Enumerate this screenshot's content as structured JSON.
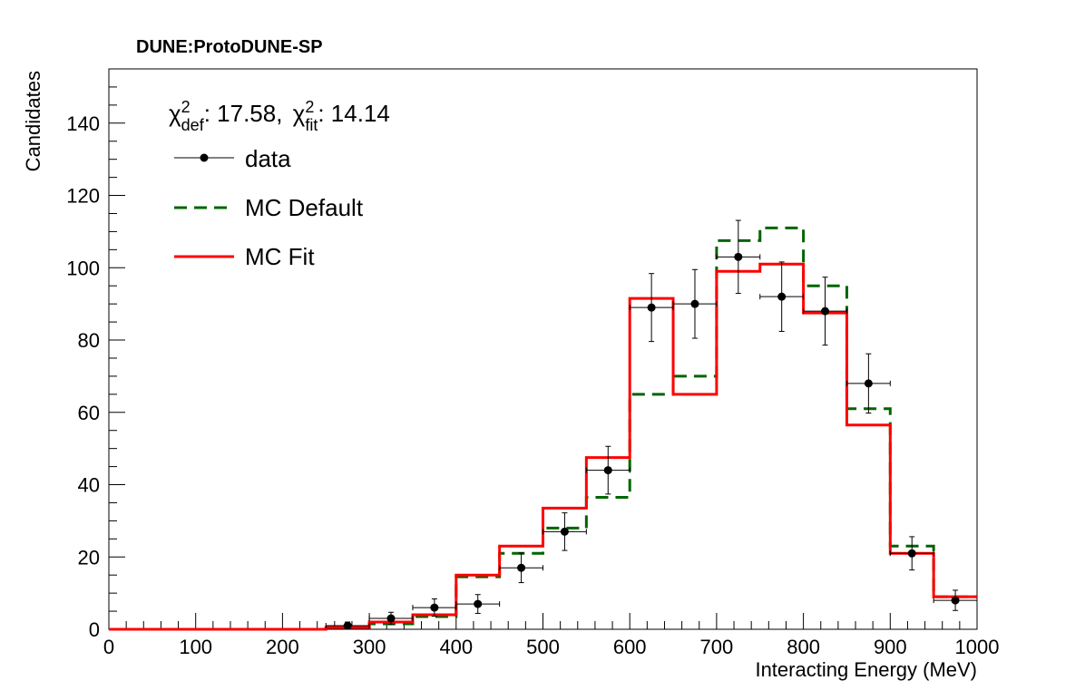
{
  "chart_data": {
    "type": "line",
    "experiment_label": "DUNE:ProtoDUNE-SP",
    "xlabel": "Interacting Energy (MeV)",
    "ylabel": "Candidates",
    "xlim": [
      0,
      1000
    ],
    "ylim": [
      0,
      155
    ],
    "x_ticks": [
      "0",
      "100",
      "200",
      "300",
      "400",
      "500",
      "600",
      "700",
      "800",
      "900",
      "1000"
    ],
    "y_ticks": [
      "0",
      "20",
      "40",
      "60",
      "80",
      "100",
      "120",
      "140"
    ],
    "chi2": {
      "symbol": "χ",
      "sup": "2",
      "def_sub": "def",
      "def_value": ": 17.58,",
      "fit_sub": "fit",
      "fit_value": ": 14.14"
    },
    "bin_edges": [
      0,
      50,
      100,
      150,
      200,
      250,
      300,
      350,
      400,
      450,
      500,
      550,
      600,
      650,
      700,
      750,
      800,
      850,
      900,
      950,
      1000
    ],
    "series": [
      {
        "name": "data",
        "style": "points",
        "color": "#000000",
        "x": [
          275,
          325,
          375,
          425,
          475,
          525,
          575,
          625,
          675,
          725,
          775,
          825,
          875,
          925,
          975
        ],
        "y": [
          1,
          3,
          6,
          7,
          17,
          27,
          44,
          89,
          90,
          103,
          92,
          88,
          68,
          21,
          8
        ],
        "y_err": [
          1,
          1.7,
          2.4,
          2.6,
          4.1,
          5.2,
          6.6,
          9.4,
          9.5,
          10.1,
          9.6,
          9.4,
          8.2,
          4.6,
          2.8
        ],
        "x_err": 25
      },
      {
        "name": "MC Default",
        "style": "dashed-step",
        "color": "#006400",
        "values": [
          0,
          0,
          0,
          0,
          0,
          0.5,
          1.5,
          3.5,
          14.5,
          21,
          28,
          36.5,
          65,
          70,
          107.5,
          111,
          95,
          61,
          23,
          9
        ]
      },
      {
        "name": "MC Fit",
        "style": "solid-step",
        "color": "#ff0000",
        "values": [
          0,
          0,
          0,
          0,
          0,
          0.5,
          2,
          4,
          15,
          23,
          33.5,
          47.5,
          91.5,
          65,
          99,
          101,
          87.5,
          56.5,
          21,
          9
        ]
      }
    ],
    "legend_position": "top-left",
    "grid": false
  }
}
